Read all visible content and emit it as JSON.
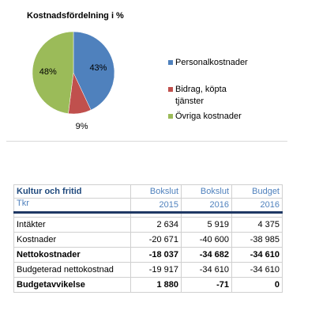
{
  "chart": {
    "title": "Kostnadsfördelning i %"
  },
  "chart_data": {
    "type": "pie",
    "title": "Kostnadsfördelning i %",
    "slices": [
      {
        "name": "Personalkostnader",
        "value": 43,
        "label": "43%",
        "color": "#4f81bd"
      },
      {
        "name": "Bidrag, köpta tjänster",
        "value": 9,
        "label": "9%",
        "color": "#c0504d"
      },
      {
        "name": "Övriga kostnader",
        "value": 48,
        "label": "48%",
        "color": "#9bbb59"
      }
    ],
    "legend_position": "right"
  },
  "legend": {
    "items": [
      {
        "label": "Personalkostnader",
        "label_line2": ""
      },
      {
        "label": "Bidrag, köpta",
        "label_line2": "tjänster"
      },
      {
        "label": "Övriga kostnader",
        "label_line2": ""
      }
    ]
  },
  "table": {
    "title": "Kultur och fritid",
    "unit": "Tkr",
    "columns": [
      {
        "line1": "Bokslut",
        "line2": "2015"
      },
      {
        "line1": "Bokslut",
        "line2": "2016"
      },
      {
        "line1": "Budget",
        "line2": "2016"
      }
    ],
    "rows": [
      {
        "label": "Intäkter",
        "values": [
          "2 634",
          "5 919",
          "4 375"
        ],
        "bold": false
      },
      {
        "label": "Kostnader",
        "values": [
          "-20 671",
          "-40 600",
          "-38 985"
        ],
        "bold": false
      },
      {
        "label": "Nettokostnader",
        "values": [
          "-18 037",
          "-34 682",
          "-34 610"
        ],
        "bold": true
      },
      {
        "label": "Budgeterad nettokostnad",
        "values": [
          "-19 917",
          "-34 610",
          "-34 610"
        ],
        "bold": false
      },
      {
        "label": "Budgetavvikelse",
        "values": [
          "1 880",
          "-71",
          "0"
        ],
        "bold": true
      }
    ]
  }
}
